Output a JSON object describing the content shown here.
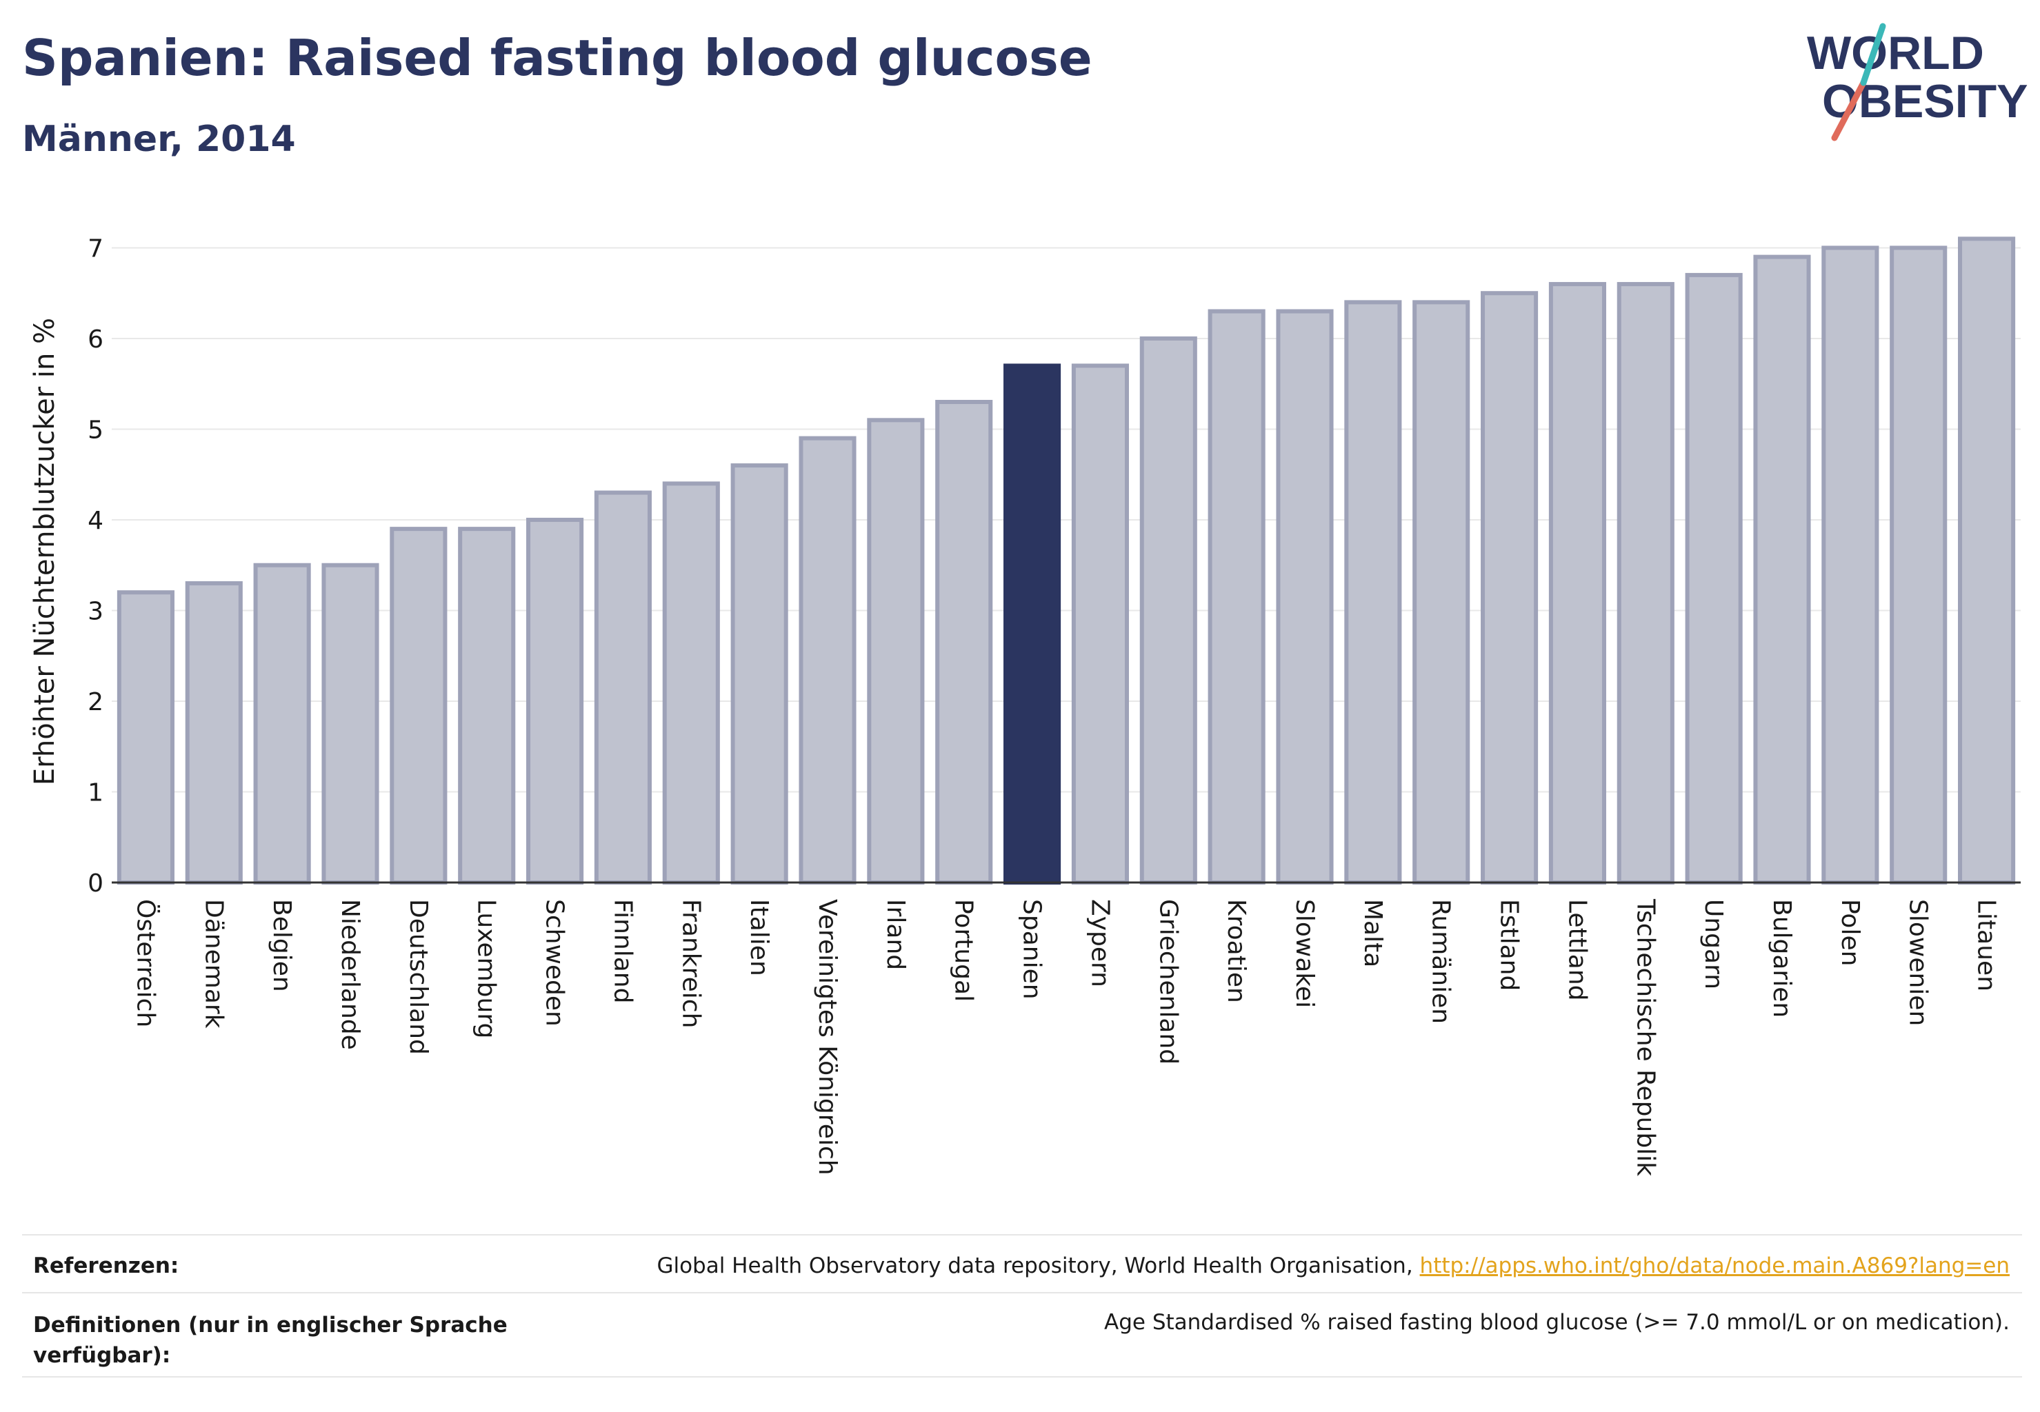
{
  "header": {
    "title": "Spanien: Raised fasting blood glucose",
    "subtitle": "Männer, 2014"
  },
  "logo": {
    "line1": "WORLD",
    "line2": "OBESITY"
  },
  "colors": {
    "highlight": "#2b3560",
    "bar_fill": "#bfc2cf",
    "bar_stroke": "#9ea2b8",
    "grid": "#e8e8e8",
    "axis": "#333333",
    "link": "#e3a31c"
  },
  "chart_data": {
    "type": "bar",
    "ylabel": "Erhöhter Nüchternblutzucker in %",
    "ylim": [
      0,
      7.3
    ],
    "yticks": [
      "0",
      "1",
      "2",
      "3",
      "4",
      "5",
      "6",
      "7"
    ],
    "highlight": "Spanien",
    "categories": [
      "Österreich",
      "Dänemark",
      "Belgien",
      "Niederlande",
      "Deutschland",
      "Luxemburg",
      "Schweden",
      "Finnland",
      "Frankreich",
      "Italien",
      "Vereinigtes Königreich",
      "Irland",
      "Portugal",
      "Spanien",
      "Zypern",
      "Griechenland",
      "Kroatien",
      "Slowakei",
      "Malta",
      "Rumänien",
      "Estland",
      "Lettland",
      "Tschechische Republik",
      "Ungarn",
      "Bulgarien",
      "Polen",
      "Slowenien",
      "Litauen"
    ],
    "values": [
      3.2,
      3.3,
      3.5,
      3.5,
      3.9,
      3.9,
      4.0,
      4.3,
      4.4,
      4.6,
      4.9,
      5.1,
      5.3,
      5.7,
      5.7,
      6.0,
      6.3,
      6.3,
      6.4,
      6.4,
      6.5,
      6.6,
      6.6,
      6.7,
      6.9,
      7.0,
      7.0,
      7.1
    ],
    "grid": true
  },
  "footer": {
    "references_label": "Referenzen:",
    "references_text": "Global Health Observatory data repository, World Health Organisation,",
    "references_link": "http://apps.who.int/gho/data/node.main.A869?lang=en",
    "definitions_label": "Definitionen (nur in englischer Sprache verfügbar):",
    "definitions_text": "Age Standardised % raised fasting blood glucose (>= 7.0 mmol/L or on medication)."
  }
}
